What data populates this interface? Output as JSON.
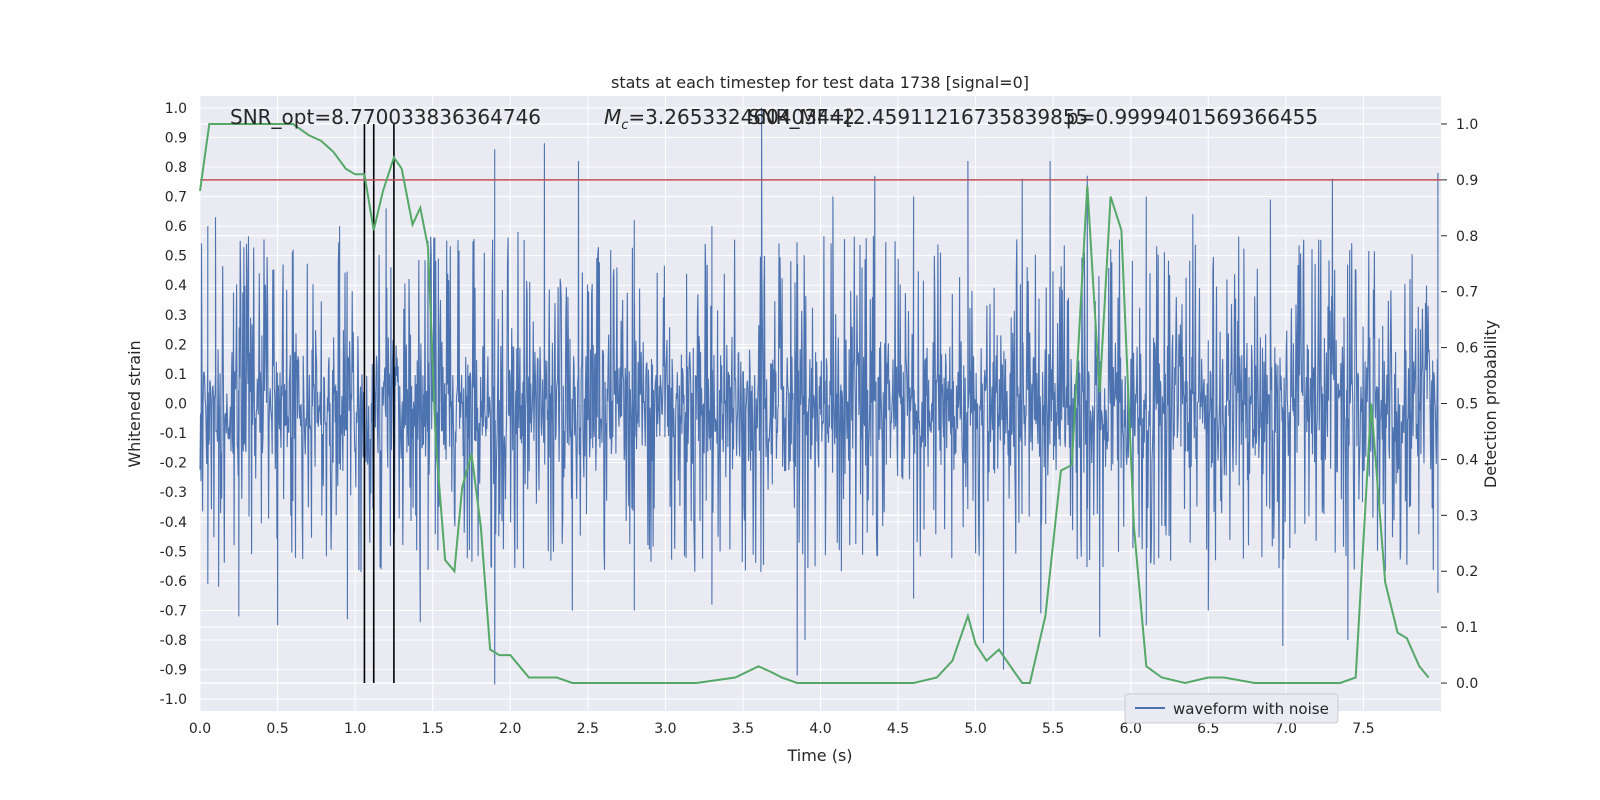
{
  "chart_data": {
    "type": "line",
    "title": "stats at each timestep for test data 1738 [signal=0]",
    "xlabel": "Time (s)",
    "ylabel": "Whitened strain",
    "ylabel_right": "Detection probability",
    "xlim": [
      0,
      8
    ],
    "ylim": [
      -1.04,
      1.04
    ],
    "ylim_right": [
      -0.05,
      1.05
    ],
    "x_ticks": [
      "0.0",
      "0.5",
      "1.0",
      "1.5",
      "2.0",
      "2.5",
      "3.0",
      "3.5",
      "4.0",
      "4.5",
      "5.0",
      "5.5",
      "6.0",
      "6.5",
      "7.0",
      "7.5"
    ],
    "y_ticks": [
      "1.0",
      "0.9",
      "0.8",
      "0.7",
      "0.6",
      "0.5",
      "0.4",
      "0.3",
      "0.2",
      "0.1",
      "0.0",
      "-0.1",
      "-0.2",
      "-0.3",
      "-0.4",
      "-0.5",
      "-0.6",
      "-0.7",
      "-0.8",
      "-0.9",
      "-1.0"
    ],
    "y_ticks_right": [
      "1.0",
      "0.9",
      "0.8",
      "0.7",
      "0.6",
      "0.5",
      "0.4",
      "0.3",
      "0.2",
      "0.1",
      "0.0"
    ],
    "grid": true,
    "legend_position": "lower-right",
    "legend_entries": [
      "waveform with noise"
    ],
    "annotations": {
      "snr": "SNR_opt=8.770033836364746",
      "mc": "=3.265332460403442",
      "mc_symbol": "M",
      "mc_subscript": "c",
      "snr_mf": "SNR_MF=[2.45911216735839855",
      "p": "p=0.9999401569366455"
    },
    "threshold": {
      "axis": "right",
      "value": 0.9,
      "color": "#c44e52"
    },
    "vertical_markers": [
      1.06,
      1.12,
      1.25
    ],
    "series": [
      {
        "name": "waveform with noise",
        "axis": "left",
        "color": "#4c72b0",
        "style": "dense noise trace",
        "envelope_peaks_upper": [
          [
            0.05,
            0.6
          ],
          [
            0.1,
            0.63
          ],
          [
            0.3,
            0.54
          ],
          [
            0.6,
            0.52
          ],
          [
            0.9,
            0.6
          ],
          [
            1.2,
            0.66
          ],
          [
            1.47,
            0.55
          ],
          [
            1.9,
            0.86
          ],
          [
            2.05,
            0.58
          ],
          [
            2.22,
            0.88
          ],
          [
            2.44,
            0.82
          ],
          [
            2.8,
            0.62
          ],
          [
            3.3,
            0.6
          ],
          [
            3.62,
            1.0
          ],
          [
            4.08,
            0.7
          ],
          [
            4.35,
            0.77
          ],
          [
            4.6,
            0.7
          ],
          [
            4.95,
            0.82
          ],
          [
            5.3,
            0.76
          ],
          [
            5.48,
            0.82
          ],
          [
            5.72,
            0.77
          ],
          [
            6.1,
            0.7
          ],
          [
            6.4,
            0.64
          ],
          [
            6.9,
            0.69
          ],
          [
            7.3,
            0.76
          ],
          [
            7.98,
            0.78
          ]
        ],
        "envelope_peaks_lower": [
          [
            0.05,
            -0.61
          ],
          [
            0.12,
            -0.62
          ],
          [
            0.25,
            -0.72
          ],
          [
            0.5,
            -0.75
          ],
          [
            0.95,
            -0.73
          ],
          [
            1.25,
            -0.72
          ],
          [
            1.42,
            -0.74
          ],
          [
            1.9,
            -0.95
          ],
          [
            2.4,
            -0.7
          ],
          [
            2.8,
            -0.7
          ],
          [
            3.3,
            -0.68
          ],
          [
            3.85,
            -0.92
          ],
          [
            3.9,
            -0.8
          ],
          [
            4.6,
            -0.66
          ],
          [
            5.05,
            -0.81
          ],
          [
            5.18,
            -0.9
          ],
          [
            5.42,
            -0.71
          ],
          [
            5.8,
            -0.79
          ],
          [
            6.1,
            -0.75
          ],
          [
            6.5,
            -0.7
          ],
          [
            6.98,
            -0.82
          ],
          [
            7.4,
            -0.8
          ],
          [
            7.98,
            -0.64
          ]
        ]
      },
      {
        "name": "",
        "axis": "right",
        "color": "#55a868",
        "x": [
          0.0,
          0.06,
          0.12,
          0.2,
          0.3,
          0.4,
          0.5,
          0.6,
          0.7,
          0.78,
          0.86,
          0.94,
          1.0,
          1.06,
          1.12,
          1.18,
          1.25,
          1.3,
          1.37,
          1.42,
          1.47,
          1.52,
          1.58,
          1.64,
          1.69,
          1.75,
          1.81,
          1.87,
          1.93,
          2.0,
          2.06,
          2.12,
          2.2,
          2.3,
          2.4,
          2.6,
          2.8,
          3.0,
          3.2,
          3.45,
          3.6,
          3.68,
          3.75,
          3.85,
          4.0,
          4.3,
          4.6,
          4.75,
          4.85,
          4.95,
          5.0,
          5.07,
          5.15,
          5.25,
          5.3,
          5.35,
          5.45,
          5.55,
          5.62,
          5.72,
          5.8,
          5.87,
          5.94,
          6.02,
          6.1,
          6.2,
          6.35,
          6.5,
          6.6,
          6.8,
          7.0,
          7.2,
          7.35,
          7.45,
          7.55,
          7.64,
          7.72,
          7.78,
          7.86,
          7.92
        ],
        "y": [
          0.88,
          1.0,
          1.0,
          1.0,
          1.0,
          1.0,
          1.0,
          1.0,
          0.98,
          0.97,
          0.95,
          0.92,
          0.91,
          0.91,
          0.81,
          0.88,
          0.94,
          0.92,
          0.82,
          0.85,
          0.78,
          0.43,
          0.22,
          0.2,
          0.35,
          0.41,
          0.28,
          0.06,
          0.05,
          0.05,
          0.03,
          0.01,
          0.01,
          0.01,
          0.0,
          0.0,
          0.0,
          0.0,
          0.0,
          0.01,
          0.03,
          0.02,
          0.01,
          0.0,
          0.0,
          0.0,
          0.0,
          0.01,
          0.04,
          0.12,
          0.07,
          0.04,
          0.06,
          0.02,
          0.0,
          0.0,
          0.12,
          0.38,
          0.39,
          0.89,
          0.52,
          0.87,
          0.81,
          0.28,
          0.03,
          0.01,
          0.0,
          0.01,
          0.01,
          0.0,
          0.0,
          0.0,
          0.0,
          0.01,
          0.5,
          0.18,
          0.09,
          0.08,
          0.03,
          0.01
        ]
      }
    ]
  }
}
